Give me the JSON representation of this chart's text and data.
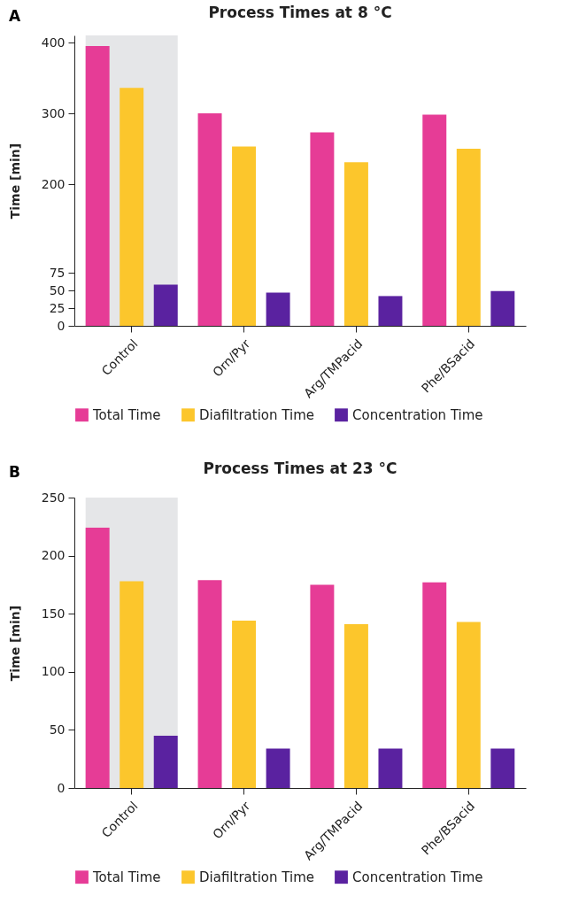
{
  "chart_data": [
    {
      "type": "bar",
      "title": "Process Times at 8 °C",
      "ylabel": "Time [min]",
      "annotations": [
        "A"
      ],
      "categories": [
        "Control",
        "Orn/Pyr",
        "Arg/TMPacid",
        "Phe/BSacid"
      ],
      "series": [
        {
          "name": "Total Time",
          "color": "#e63c96",
          "values": [
            395,
            300,
            273,
            298
          ]
        },
        {
          "name": "Diafiltration Time",
          "color": "#fcc62c",
          "values": [
            336,
            253,
            231,
            250
          ]
        },
        {
          "name": "Concentration Time",
          "color": "#5a22a0",
          "values": [
            58,
            47,
            42,
            49
          ]
        }
      ],
      "ylim": [
        0,
        410
      ],
      "yticks": [
        0,
        25,
        50,
        75,
        200,
        300,
        400
      ],
      "bands": [
        {
          "axis": "x",
          "from": "Control",
          "to": "Control",
          "color": "#e5e6e8"
        }
      ],
      "legend": "bottom",
      "grid": false
    },
    {
      "type": "bar",
      "title": "Process Times at 23 °C",
      "ylabel": "Time [min]",
      "annotations": [
        "B"
      ],
      "categories": [
        "Control",
        "Orn/Pyr",
        "Arg/TMPacid",
        "Phe/BSacid"
      ],
      "series": [
        {
          "name": "Total Time",
          "color": "#e63c96",
          "values": [
            224,
            179,
            175,
            177
          ]
        },
        {
          "name": "Diafiltration Time",
          "color": "#fcc62c",
          "values": [
            178,
            144,
            141,
            143
          ]
        },
        {
          "name": "Concentration Time",
          "color": "#5a22a0",
          "values": [
            45,
            34,
            34,
            34
          ]
        }
      ],
      "ylim": [
        0,
        250
      ],
      "yticks": [
        0,
        50,
        100,
        150,
        200,
        250
      ],
      "bands": [
        {
          "axis": "x",
          "from": "Control",
          "to": "Control",
          "color": "#e5e6e8"
        }
      ],
      "legend": "bottom",
      "grid": false
    }
  ]
}
